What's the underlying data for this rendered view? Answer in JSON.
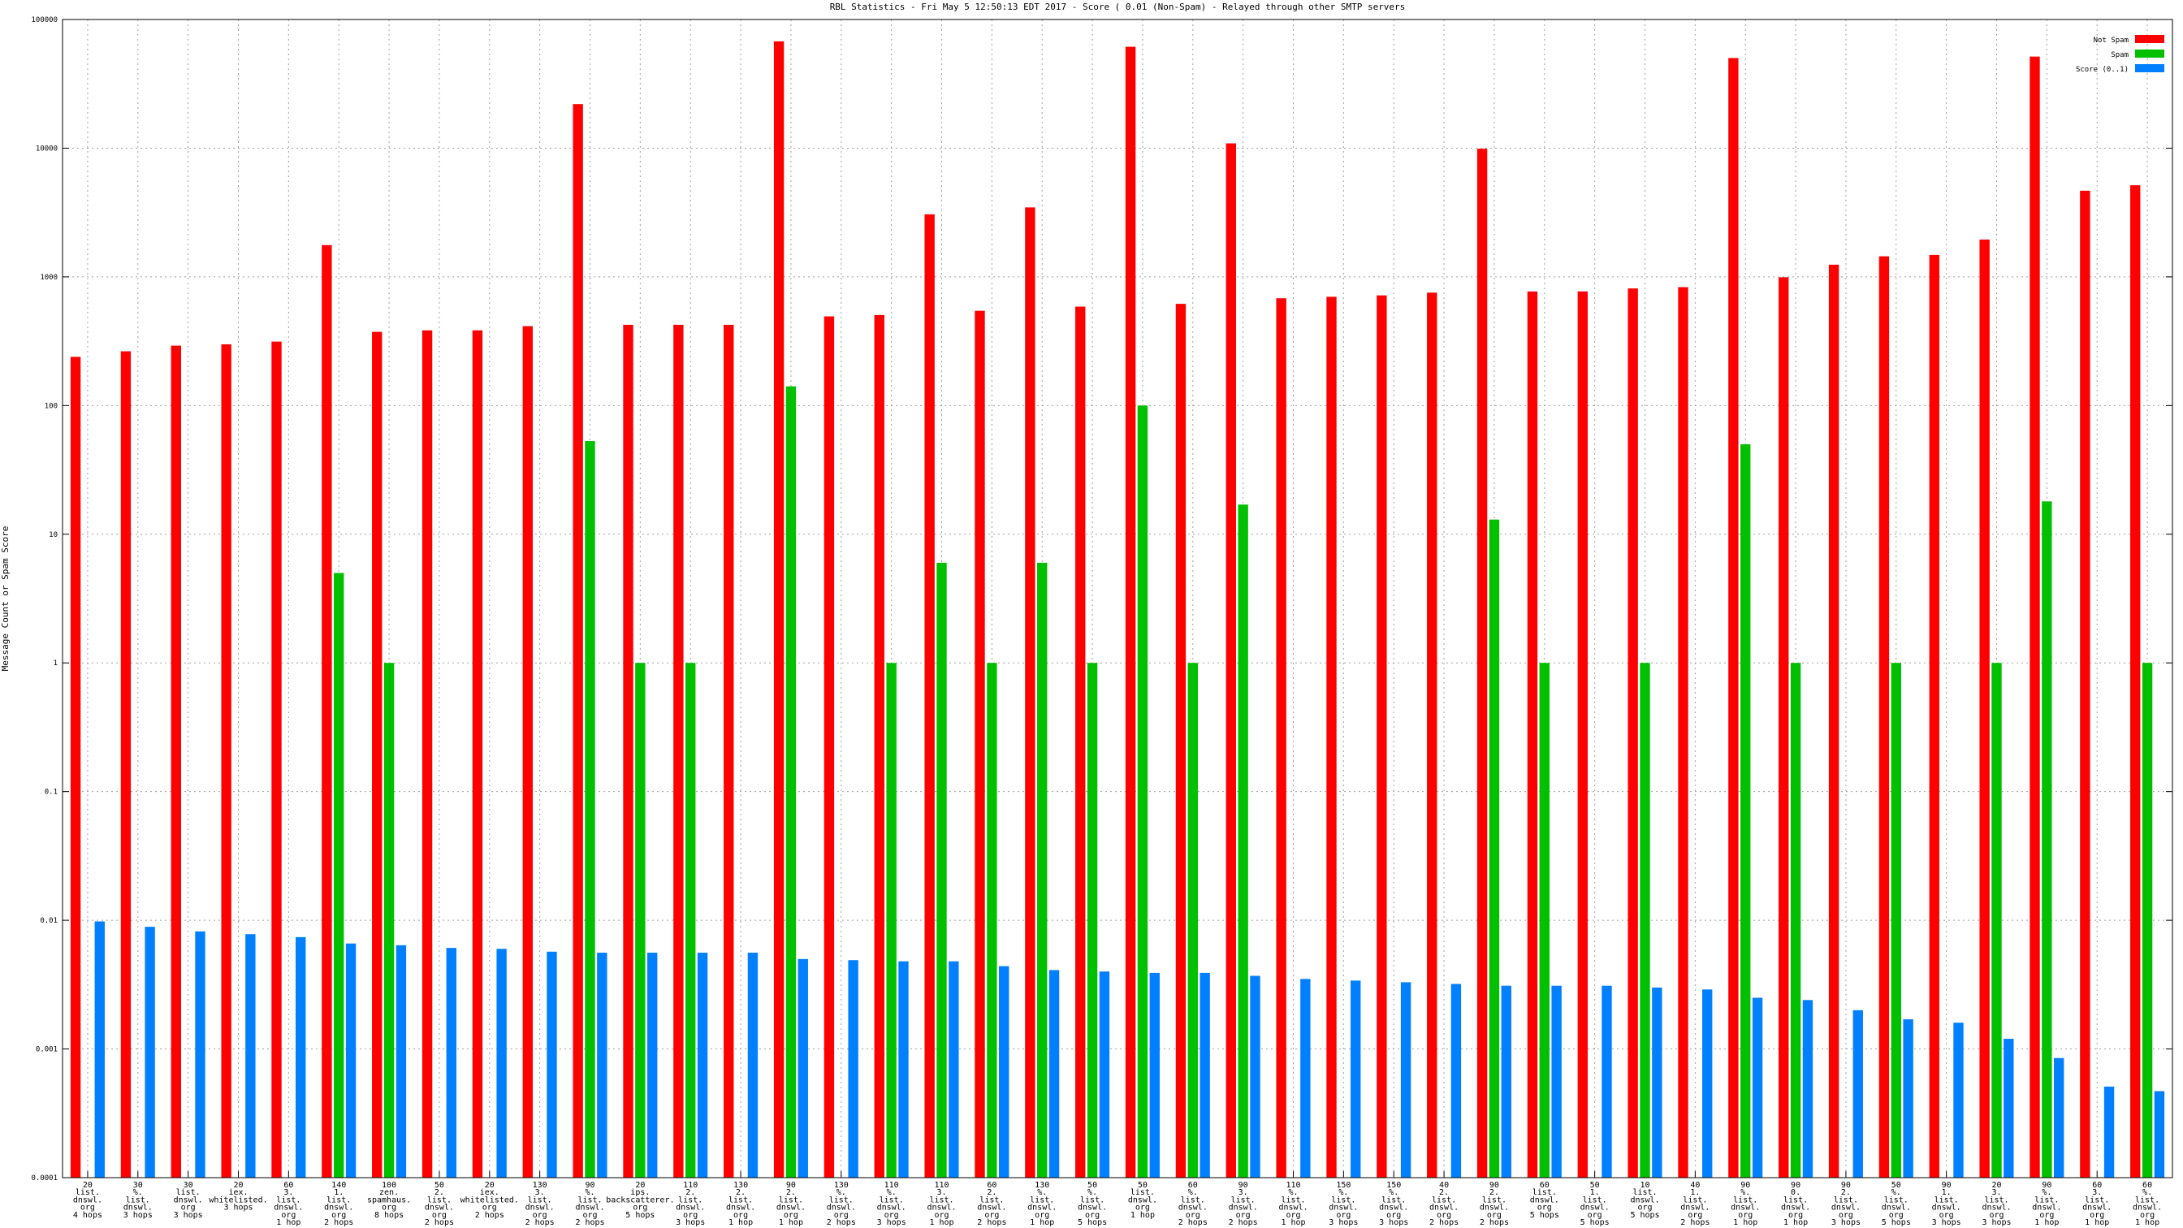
{
  "chart_data": {
    "type": "bar",
    "title": "RBL Statistics - Fri May  5 12:50:13 EDT 2017 - Score ( 0.01 (Non-Spam) - Relayed through other SMTP servers",
    "y_label": "Message Count or Spam Score",
    "yscale": "log",
    "grid": true,
    "legend": "top-right",
    "ylim": [
      0.0001,
      100000
    ],
    "yticks": [
      0.0001,
      0.001,
      0.01,
      0.1,
      1,
      10,
      100,
      1000,
      10000,
      100000
    ],
    "categories": [
      [
        "20",
        "list.",
        "dnswl.",
        "org",
        "4 hops"
      ],
      [
        "30",
        "%.",
        "list.",
        "dnswl.",
        "3 hops"
      ],
      [
        "30",
        "list.",
        "dnswl.",
        "org",
        "3 hops"
      ],
      [
        "20",
        "iex.",
        "whitelisted.",
        "3 hops"
      ],
      [
        "60",
        "3.",
        "list.",
        "dnswl.",
        "org",
        "1 hop"
      ],
      [
        "140",
        "1.",
        "list.",
        "dnswl.",
        "org",
        "2 hops"
      ],
      [
        "100",
        "zen.",
        "spamhaus.",
        "org",
        "8 hops"
      ],
      [
        "50",
        "2.",
        "list.",
        "dnswl.",
        "org",
        "2 hops"
      ],
      [
        "20",
        "iex.",
        "whitelisted.",
        "org",
        "2 hops"
      ],
      [
        "130",
        "3.",
        "list.",
        "dnswl.",
        "org",
        "2 hops"
      ],
      [
        "90",
        "%.",
        "list.",
        "dnswl.",
        "org",
        "2 hops"
      ],
      [
        "20",
        "ips.",
        "backscatterer.",
        "org",
        "5 hops"
      ],
      [
        "110",
        "2.",
        "list.",
        "dnswl.",
        "org",
        "3 hops"
      ],
      [
        "130",
        "2.",
        "list.",
        "dnswl.",
        "org",
        "1 hop"
      ],
      [
        "90",
        "2.",
        "list.",
        "dnswl.",
        "org",
        "1 hop"
      ],
      [
        "130",
        "%.",
        "list.",
        "dnswl.",
        "org",
        "2 hops"
      ],
      [
        "110",
        "%.",
        "list.",
        "dnswl.",
        "org",
        "3 hops"
      ],
      [
        "110",
        "3.",
        "list.",
        "dnswl.",
        "org",
        "1 hop"
      ],
      [
        "60",
        "2.",
        "list.",
        "dnswl.",
        "org",
        "2 hops"
      ],
      [
        "130",
        "%.",
        "list.",
        "dnswl.",
        "org",
        "1 hop"
      ],
      [
        "50",
        "%.",
        "list.",
        "dnswl.",
        "org",
        "5 hops"
      ],
      [
        "50",
        "list.",
        "dnswl.",
        "org",
        "1 hop"
      ],
      [
        "60",
        "%.",
        "list.",
        "dnswl.",
        "org",
        "2 hops"
      ],
      [
        "90",
        "3.",
        "list.",
        "dnswl.",
        "org",
        "2 hops"
      ],
      [
        "110",
        "%.",
        "list.",
        "dnswl.",
        "org",
        "1 hop"
      ],
      [
        "150",
        "%.",
        "list.",
        "dnswl.",
        "org",
        "3 hops"
      ],
      [
        "150",
        "%.",
        "list.",
        "dnswl.",
        "org",
        "3 hops"
      ],
      [
        "40",
        "2.",
        "list.",
        "dnswl.",
        "org",
        "2 hops"
      ],
      [
        "90",
        "2.",
        "list.",
        "dnswl.",
        "org",
        "2 hops"
      ],
      [
        "60",
        "list.",
        "dnswl.",
        "org",
        "5 hops"
      ],
      [
        "50",
        "1.",
        "list.",
        "dnswl.",
        "org",
        "5 hops"
      ],
      [
        "10",
        "list.",
        "dnswl.",
        "org",
        "5 hops"
      ],
      [
        "40",
        "1.",
        "list.",
        "dnswl.",
        "org",
        "2 hops"
      ],
      [
        "90",
        "%.",
        "list.",
        "dnswl.",
        "org",
        "1 hop"
      ],
      [
        "90",
        "0.",
        "list.",
        "dnswl.",
        "org",
        "1 hop"
      ],
      [
        "90",
        "2.",
        "list.",
        "dnswl.",
        "org",
        "3 hops"
      ],
      [
        "50",
        "%.",
        "list.",
        "dnswl.",
        "org",
        "5 hops"
      ],
      [
        "90",
        "1.",
        "list.",
        "dnswl.",
        "org",
        "3 hops"
      ],
      [
        "20",
        "3.",
        "list.",
        "dnswl.",
        "org",
        "3 hops"
      ],
      [
        "90",
        "%.",
        "list.",
        "dnswl.",
        "org",
        "1 hop"
      ],
      [
        "60",
        "3.",
        "list.",
        "dnswl.",
        "org",
        "1 hop"
      ],
      [
        "60",
        "%.",
        "list.",
        "dnswl.",
        "org",
        "1 hop"
      ]
    ],
    "series": [
      {
        "name": "Not Spam",
        "color": "#ff0000",
        "values": [
          239,
          264,
          292,
          299,
          314,
          1765,
          374,
          384,
          384,
          414,
          22000,
          424,
          424,
          424,
          67600,
          493,
          505,
          3060,
          545,
          3465,
          587,
          61400,
          617,
          10900,
          682,
          700,
          718,
          754,
          9900,
          770,
          770,
          813,
          832,
          50200,
          993,
          1243,
          1445,
          1480,
          1950,
          51500,
          4670,
          5150
        ]
      },
      {
        "name": "Spam",
        "color": "#00c000",
        "values": [
          null,
          null,
          null,
          null,
          null,
          5,
          1,
          null,
          null,
          null,
          53,
          1,
          1,
          null,
          141,
          null,
          1,
          6,
          1,
          6,
          1,
          100,
          1,
          17,
          null,
          null,
          null,
          null,
          13,
          1,
          null,
          1,
          null,
          50,
          1,
          null,
          1,
          null,
          1,
          18,
          null,
          1
        ]
      },
      {
        "name": "Score (0..1)",
        "color": "#0080ff",
        "values": [
          0.0098,
          0.0089,
          0.0082,
          0.0078,
          0.0074,
          0.0066,
          0.0064,
          0.0061,
          0.006,
          0.0057,
          0.0056,
          0.0056,
          0.0056,
          0.0056,
          0.005,
          0.0049,
          0.0048,
          0.0048,
          0.0044,
          0.0041,
          0.004,
          0.0039,
          0.0039,
          0.0037,
          0.0035,
          0.0034,
          0.0033,
          0.0032,
          0.0031,
          0.0031,
          0.0031,
          0.003,
          0.0029,
          0.0025,
          0.0024,
          0.002,
          0.0017,
          0.0016,
          0.0012,
          0.00085,
          0.00051,
          0.00047
        ]
      }
    ]
  }
}
